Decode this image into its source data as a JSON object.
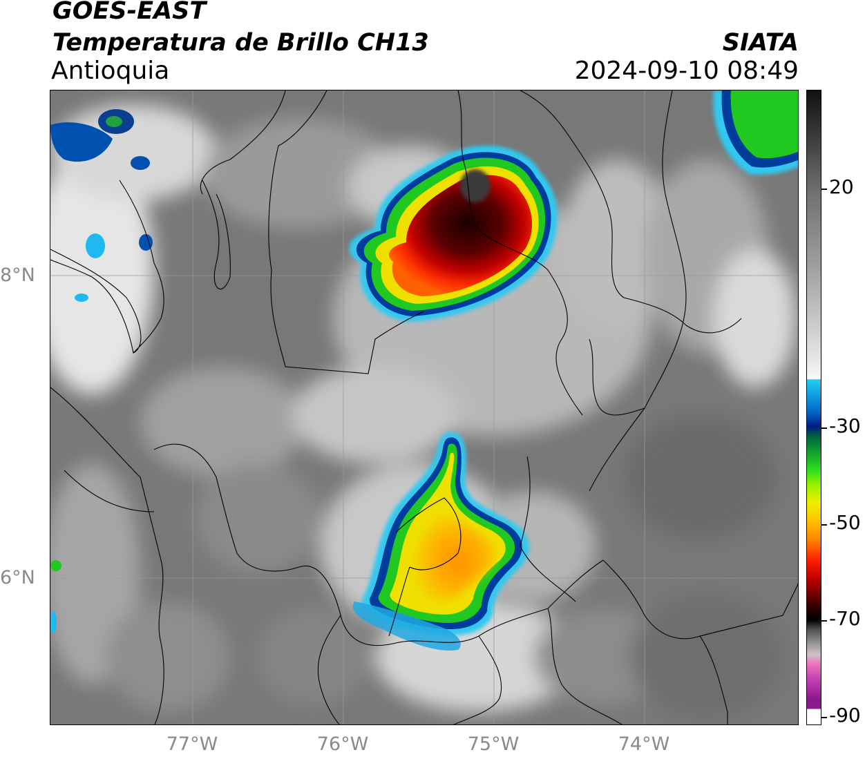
{
  "header": {
    "satellite": "GOES-EAST",
    "product": "Temperatura de Brillo CH13",
    "region": "Antioquia",
    "agency": "SIATA",
    "datetime": "2024-09-10 08:49"
  },
  "map": {
    "lat_labels": [
      "8°N",
      "6°N"
    ],
    "lon_labels": [
      "77°W",
      "76°W",
      "75°W",
      "74°W"
    ],
    "colors": {
      "background_gray": "#7a7a7a",
      "storm_red": "#b00000",
      "storm_dark": "#1a0000",
      "storm_yellow": "#f5c800",
      "storm_orange": "#ff9800",
      "storm_green": "#20d020",
      "storm_blue": "#0040a0",
      "storm_cyan": "#20c0f0"
    }
  },
  "colorbar": {
    "ticks": [
      "20",
      "-30",
      "-50",
      "-70",
      "-90"
    ],
    "tick_values": [
      20,
      -30,
      -50,
      -70,
      -90
    ],
    "range": [
      -90,
      40
    ]
  }
}
